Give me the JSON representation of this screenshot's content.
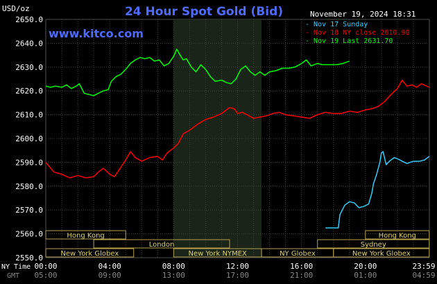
{
  "header": {
    "units": "USD/oz",
    "title": "24 Hour Spot Gold (Bid)",
    "timestamp": "November 19, 2024 18:31",
    "watermark": "www.kitco.com"
  },
  "legend": [
    {
      "label": "Nov 17 Sunday",
      "color": "#33ccff"
    },
    {
      "label": "Nov 18 NY close 2610.90",
      "color": "#ff0000"
    },
    {
      "label": "Nov 19 Last 2631.70",
      "color": "#00ff00"
    }
  ],
  "bottom_axis": {
    "row1_label": "NY Time",
    "row2_label": "GMT",
    "ny_ticks": [
      "00:00",
      "04:00",
      "08:00",
      "12:00",
      "16:00",
      "20:00",
      "23:59"
    ],
    "gmt_ticks": [
      "05:00",
      "09:00",
      "13:00",
      "17:00",
      "21:00",
      "01:00",
      "04:59"
    ]
  },
  "sessions": [
    {
      "label": "Hong Kong",
      "start": 0.0,
      "end": 5.0,
      "row": 0
    },
    {
      "label": "Hong Kong",
      "start": 20.0,
      "end": 23.99,
      "row": 0
    },
    {
      "label": "London",
      "start": 3.0,
      "end": 11.5,
      "row": 1
    },
    {
      "label": "Sydney",
      "start": 17.0,
      "end": 23.99,
      "row": 1
    },
    {
      "label": "New York Globex",
      "start": 0.0,
      "end": 5.5,
      "row": 2
    },
    {
      "label": "New York NYMEX",
      "start": 8.0,
      "end": 13.5,
      "row": 2
    },
    {
      "label": "NY Globex",
      "start": 13.5,
      "end": 18.0,
      "row": 2
    },
    {
      "label": "New York Globex",
      "start": 18.0,
      "end": 23.99,
      "row": 2
    }
  ],
  "chart_data": {
    "type": "line",
    "title": "24 Hour Spot Gold (Bid)",
    "ylabel": "USD/oz",
    "xlabel": "NY Time",
    "ylim": [
      2550,
      2650
    ],
    "xlim": [
      0,
      24
    ],
    "y_ticks": [
      "2550.0",
      "2560.0",
      "2570.0",
      "2580.0",
      "2590.0",
      "2600.0",
      "2610.0",
      "2620.0",
      "2630.0",
      "2640.0",
      "2650.0"
    ],
    "shaded_x_range": [
      8.0,
      13.5
    ],
    "grid": true,
    "series": [
      {
        "name": "Nov 17 Sunday",
        "color": "#33ccff",
        "points": [
          [
            17.5,
            2562.5
          ],
          [
            18.3,
            2562.5
          ],
          [
            18.4,
            2568.0
          ],
          [
            18.7,
            2572.0
          ],
          [
            19.0,
            2573.5
          ],
          [
            19.3,
            2573.0
          ],
          [
            19.6,
            2571.0
          ],
          [
            19.9,
            2571.5
          ],
          [
            20.2,
            2572.5
          ],
          [
            20.4,
            2577.0
          ],
          [
            20.5,
            2581.0
          ],
          [
            20.7,
            2585.0
          ],
          [
            20.9,
            2590.0
          ],
          [
            21.0,
            2594.0
          ],
          [
            21.1,
            2594.5
          ],
          [
            21.3,
            2589.0
          ],
          [
            21.5,
            2590.5
          ],
          [
            21.8,
            2592.0
          ],
          [
            22.0,
            2591.5
          ],
          [
            22.3,
            2590.5
          ],
          [
            22.6,
            2589.5
          ],
          [
            23.0,
            2590.5
          ],
          [
            23.4,
            2590.5
          ],
          [
            23.7,
            2591.0
          ],
          [
            23.99,
            2592.5
          ]
        ]
      },
      {
        "name": "Nov 18 NY close 2610.90",
        "color": "#ff0000",
        "points": [
          [
            0.0,
            2590.0
          ],
          [
            0.5,
            2586.0
          ],
          [
            1.0,
            2585.0
          ],
          [
            1.5,
            2583.5
          ],
          [
            2.0,
            2584.5
          ],
          [
            2.5,
            2583.5
          ],
          [
            3.0,
            2584.0
          ],
          [
            3.3,
            2586.0
          ],
          [
            3.6,
            2587.5
          ],
          [
            4.0,
            2585.0
          ],
          [
            4.3,
            2584.0
          ],
          [
            4.6,
            2587.0
          ],
          [
            5.0,
            2591.0
          ],
          [
            5.3,
            2594.5
          ],
          [
            5.6,
            2592.0
          ],
          [
            6.0,
            2590.5
          ],
          [
            6.5,
            2592.0
          ],
          [
            7.0,
            2592.5
          ],
          [
            7.3,
            2591.0
          ],
          [
            7.6,
            2594.0
          ],
          [
            8.0,
            2596.0
          ],
          [
            8.3,
            2598.0
          ],
          [
            8.6,
            2602.0
          ],
          [
            9.0,
            2603.5
          ],
          [
            9.5,
            2606.0
          ],
          [
            10.0,
            2608.0
          ],
          [
            10.5,
            2609.0
          ],
          [
            11.0,
            2610.5
          ],
          [
            11.5,
            2613.0
          ],
          [
            11.8,
            2612.5
          ],
          [
            12.0,
            2610.5
          ],
          [
            12.3,
            2611.0
          ],
          [
            12.6,
            2610.0
          ],
          [
            13.0,
            2608.5
          ],
          [
            13.4,
            2609.0
          ],
          [
            13.8,
            2609.5
          ],
          [
            14.2,
            2610.5
          ],
          [
            14.6,
            2611.0
          ],
          [
            15.0,
            2610.0
          ],
          [
            15.5,
            2609.5
          ],
          [
            16.0,
            2609.0
          ],
          [
            16.5,
            2608.5
          ],
          [
            17.0,
            2610.0
          ],
          [
            17.5,
            2611.0
          ],
          [
            18.0,
            2610.5
          ],
          [
            18.5,
            2610.5
          ],
          [
            19.0,
            2611.5
          ],
          [
            19.5,
            2611.0
          ],
          [
            20.0,
            2612.0
          ],
          [
            20.4,
            2612.5
          ],
          [
            20.8,
            2613.5
          ],
          [
            21.2,
            2615.5
          ],
          [
            21.6,
            2618.5
          ],
          [
            22.0,
            2621.0
          ],
          [
            22.3,
            2624.5
          ],
          [
            22.6,
            2622.0
          ],
          [
            22.9,
            2622.5
          ],
          [
            23.2,
            2621.5
          ],
          [
            23.5,
            2623.0
          ],
          [
            23.99,
            2621.5
          ]
        ]
      },
      {
        "name": "Nov 19 Last 2631.70",
        "color": "#00ff00",
        "points": [
          [
            0.0,
            2622.0
          ],
          [
            0.3,
            2621.5
          ],
          [
            0.6,
            2622.0
          ],
          [
            1.0,
            2621.5
          ],
          [
            1.3,
            2622.5
          ],
          [
            1.6,
            2621.0
          ],
          [
            1.9,
            2622.0
          ],
          [
            2.1,
            2623.0
          ],
          [
            2.4,
            2619.0
          ],
          [
            2.7,
            2618.5
          ],
          [
            3.0,
            2618.0
          ],
          [
            3.3,
            2619.0
          ],
          [
            3.6,
            2620.0
          ],
          [
            3.9,
            2620.5
          ],
          [
            4.1,
            2624.0
          ],
          [
            4.4,
            2626.0
          ],
          [
            4.7,
            2627.0
          ],
          [
            5.0,
            2629.0
          ],
          [
            5.3,
            2631.5
          ],
          [
            5.6,
            2633.0
          ],
          [
            5.9,
            2634.0
          ],
          [
            6.2,
            2633.5
          ],
          [
            6.5,
            2634.0
          ],
          [
            6.8,
            2632.5
          ],
          [
            7.1,
            2633.0
          ],
          [
            7.4,
            2630.5
          ],
          [
            7.7,
            2631.5
          ],
          [
            8.0,
            2634.5
          ],
          [
            8.2,
            2637.5
          ],
          [
            8.4,
            2635.0
          ],
          [
            8.6,
            2633.0
          ],
          [
            8.8,
            2633.5
          ],
          [
            9.1,
            2630.0
          ],
          [
            9.4,
            2628.0
          ],
          [
            9.7,
            2631.0
          ],
          [
            10.0,
            2629.0
          ],
          [
            10.3,
            2626.0
          ],
          [
            10.6,
            2624.0
          ],
          [
            11.0,
            2624.5
          ],
          [
            11.3,
            2623.5
          ],
          [
            11.6,
            2623.0
          ],
          [
            11.9,
            2625.0
          ],
          [
            12.2,
            2629.0
          ],
          [
            12.5,
            2630.5
          ],
          [
            12.8,
            2628.0
          ],
          [
            13.1,
            2626.5
          ],
          [
            13.4,
            2628.0
          ],
          [
            13.7,
            2626.5
          ],
          [
            14.0,
            2628.0
          ],
          [
            14.4,
            2628.5
          ],
          [
            14.8,
            2629.5
          ],
          [
            15.2,
            2629.5
          ],
          [
            15.6,
            2630.0
          ],
          [
            16.0,
            2631.5
          ],
          [
            16.3,
            2633.0
          ],
          [
            16.6,
            2630.5
          ],
          [
            17.0,
            2631.5
          ],
          [
            17.3,
            2631.0
          ],
          [
            17.8,
            2631.0
          ],
          [
            18.2,
            2631.0
          ],
          [
            18.6,
            2631.5
          ],
          [
            19.0,
            2632.5
          ]
        ]
      }
    ]
  }
}
